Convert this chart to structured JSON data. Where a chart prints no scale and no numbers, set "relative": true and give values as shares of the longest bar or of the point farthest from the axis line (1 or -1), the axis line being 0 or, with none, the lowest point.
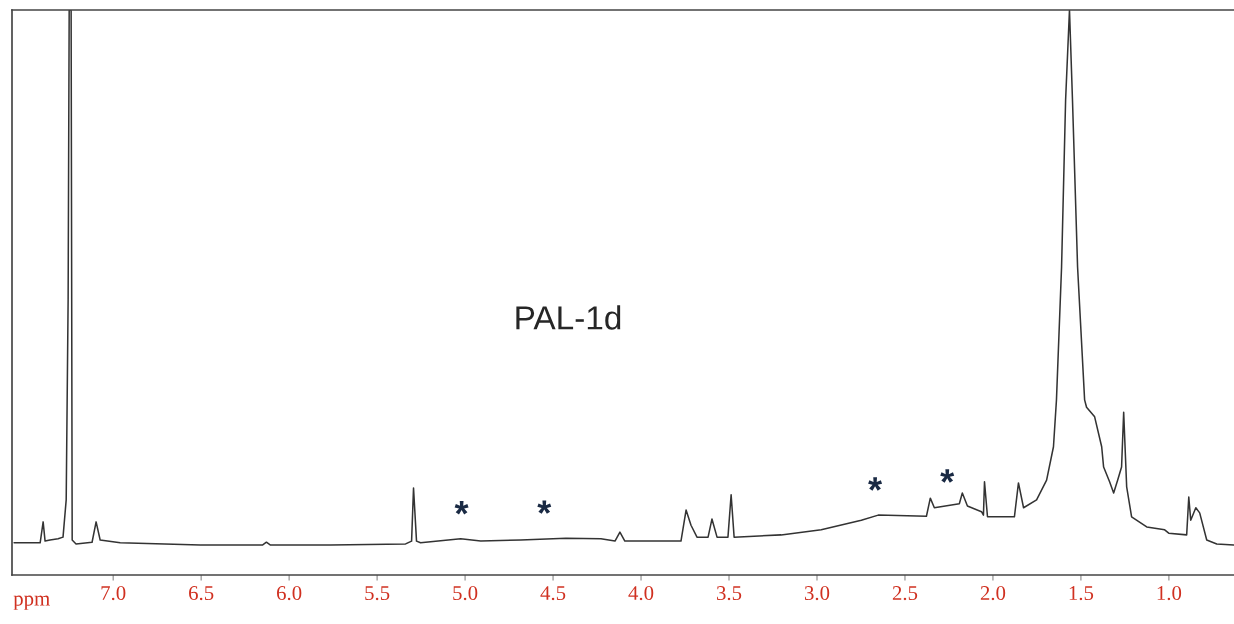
{
  "chart_data": {
    "type": "line",
    "relative": true,
    "xlabel": "ppm",
    "xlim": [
      7.575,
      0.63
    ],
    "xticks": [
      {
        "value": 7.0,
        "label": "7.0"
      },
      6.5,
      {
        "value": 6.0,
        "label": "6.0"
      },
      5.5,
      {
        "value": 5.0,
        "label": "5.0"
      },
      4.5,
      {
        "value": 4.0,
        "label": "4.0"
      },
      3.5,
      {
        "value": 3.0,
        "label": "3.0"
      },
      2.5,
      {
        "value": 2.0,
        "label": "2.0"
      },
      1.5,
      {
        "value": 1.0,
        "label": "1.0"
      }
    ],
    "grid": false,
    "legend": false,
    "marker": "none",
    "line_style": "solid",
    "series": [
      {
        "color": "#333333",
        "x": [
          7.563,
          7.415,
          7.398,
          7.387,
          7.359,
          7.313,
          7.285,
          7.267,
          7.256,
          7.25,
          7.239,
          7.233,
          7.211,
          7.12,
          7.097,
          7.074,
          6.96,
          6.505,
          6.152,
          6.129,
          6.106,
          5.765,
          5.338,
          5.304,
          5.293,
          5.276,
          5.253,
          5.025,
          4.911,
          4.684,
          4.427,
          4.228,
          4.148,
          4.12,
          4.092,
          3.773,
          3.744,
          3.716,
          3.682,
          3.619,
          3.597,
          3.568,
          3.506,
          3.488,
          3.471,
          3.204,
          2.976,
          2.748,
          2.652,
          2.378,
          2.356,
          2.333,
          2.191,
          2.174,
          2.145,
          2.065,
          2.054,
          2.048,
          2.031,
          1.878,
          1.855,
          1.826,
          1.752,
          1.695,
          1.656,
          1.639,
          1.61,
          1.587,
          1.565,
          1.548,
          1.519,
          1.479,
          1.468,
          1.422,
          1.382,
          1.371,
          1.337,
          1.314,
          1.291,
          1.269,
          1.257,
          1.24,
          1.212,
          1.126,
          1.024,
          1.001,
          0.899,
          0.887,
          0.876,
          0.847,
          0.825,
          0.785,
          0.728,
          0.631
        ],
        "values": [
          0.057,
          0.057,
          0.094,
          0.06,
          0.062,
          0.064,
          0.067,
          0.133,
          0.487,
          1,
          1,
          0.062,
          0.055,
          0.058,
          0.094,
          0.062,
          0.057,
          0.053,
          0.053,
          0.058,
          0.053,
          0.053,
          0.055,
          0.06,
          0.154,
          0.06,
          0.057,
          0.064,
          0.06,
          0.062,
          0.065,
          0.064,
          0.06,
          0.076,
          0.06,
          0.06,
          0.115,
          0.088,
          0.067,
          0.067,
          0.099,
          0.067,
          0.067,
          0.142,
          0.067,
          0.071,
          0.08,
          0.097,
          0.106,
          0.104,
          0.136,
          0.119,
          0.126,
          0.145,
          0.122,
          0.112,
          0.106,
          0.165,
          0.103,
          0.103,
          0.163,
          0.119,
          0.133,
          0.168,
          0.227,
          0.31,
          0.545,
          0.841,
          1,
          0.841,
          0.545,
          0.31,
          0.297,
          0.28,
          0.227,
          0.191,
          0.165,
          0.145,
          0.168,
          0.191,
          0.288,
          0.156,
          0.103,
          0.085,
          0.08,
          0.074,
          0.071,
          0.138,
          0.097,
          0.119,
          0.11,
          0.062,
          0.055,
          0.053
        ]
      }
    ],
    "annotations": [
      "PAL-1d",
      {
        "text": "*",
        "x": 5.02,
        "y": 0.064
      },
      {
        "text": "*",
        "x": 4.55,
        "y": 0.065
      },
      {
        "text": "*",
        "x": 2.67,
        "y": 0.106
      },
      {
        "text": "*",
        "x": 2.26,
        "y": 0.12
      }
    ]
  }
}
